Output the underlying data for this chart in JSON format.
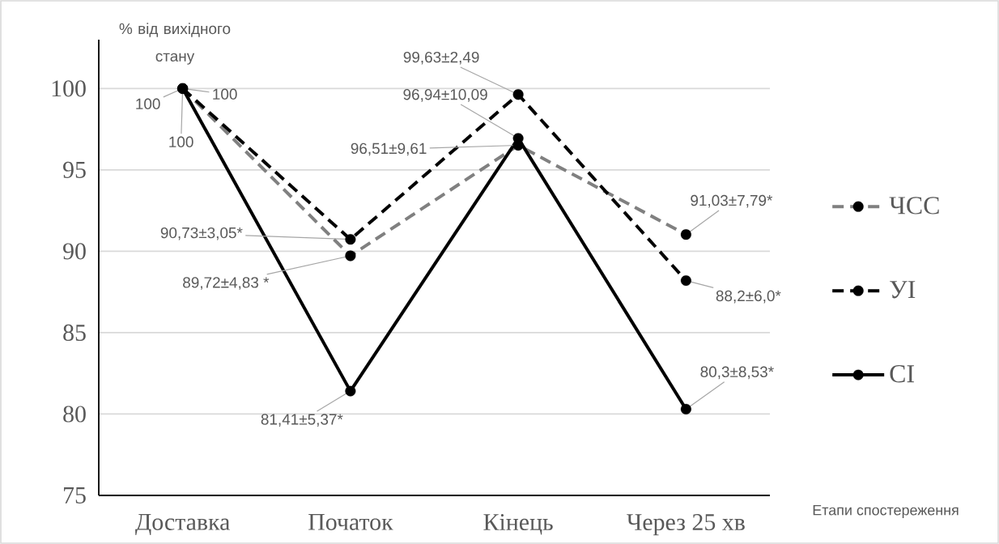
{
  "chart_data": {
    "type": "line",
    "ylabel": "% від вихідного стану",
    "annotations": [
      "Етапи спостереження"
    ],
    "categories": [
      "Доставка",
      "Початок",
      "Кінець",
      "Через 25 хв"
    ],
    "series": [
      {
        "name": "ЧСС",
        "color": "#808080",
        "line_style": "dashed",
        "values": [
          100,
          89.72,
          96.51,
          91.03
        ],
        "value_labels": [
          "100",
          "89,72±4,83 *",
          "96,51±9,61",
          "91,03±7,79*"
        ]
      },
      {
        "name": "УІ",
        "color": "#000000",
        "line_style": "dashed",
        "values": [
          100,
          90.73,
          99.63,
          88.2
        ],
        "value_labels": [
          "100",
          "90,73±3,05*",
          "99,63±2,49",
          "88,2±6,0*"
        ]
      },
      {
        "name": "СІ",
        "color": "#000000",
        "line_style": "solid",
        "values": [
          100,
          81.41,
          96.94,
          80.3
        ],
        "value_labels": [
          "100",
          "81,41±5,37*",
          "96,94±10,09",
          "80,3±8,53*"
        ]
      }
    ],
    "marker": "circle",
    "grid": "y",
    "legend": "right",
    "ylim": [
      75,
      103
    ],
    "yticks": [
      75,
      80,
      85,
      90,
      95,
      100
    ]
  }
}
